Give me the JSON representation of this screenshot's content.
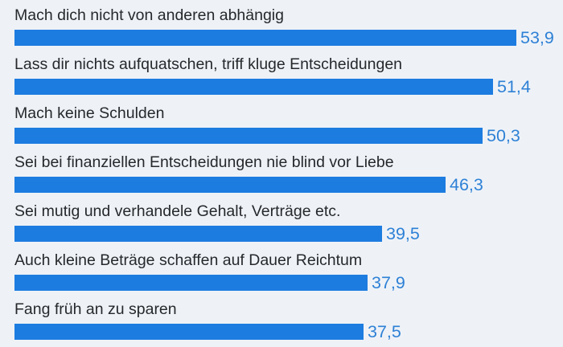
{
  "chart_data": {
    "type": "bar",
    "orientation": "horizontal",
    "title": "",
    "xlabel": "",
    "ylabel": "",
    "grid": false,
    "legend": "none",
    "value_label_position": "outside-end",
    "decimal_separator": ",",
    "xlim": [
      0,
      58
    ],
    "categories": [
      "Mach dich nicht von anderen abhängig",
      "Lass dir nichts aufquatschen, triff kluge Entscheidungen",
      "Mach keine Schulden",
      "Sei bei finanziellen Entscheidungen nie blind vor Liebe",
      "Sei mutig und verhandele Gehalt, Verträge etc.",
      "Auch kleine Beträge schaffen auf Dauer Reichtum",
      "Fang früh an zu sparen"
    ],
    "values": [
      53.9,
      51.4,
      50.3,
      46.3,
      39.5,
      37.9,
      37.5
    ],
    "value_labels": [
      "53,9",
      "51,4",
      "50,3",
      "46,3",
      "39,5",
      "37,9",
      "37,5"
    ]
  },
  "colors": {
    "background": "#eef2f7",
    "bar": "#1d7ce0",
    "value_text": "#2e81d6",
    "category_text": "#26282b"
  }
}
